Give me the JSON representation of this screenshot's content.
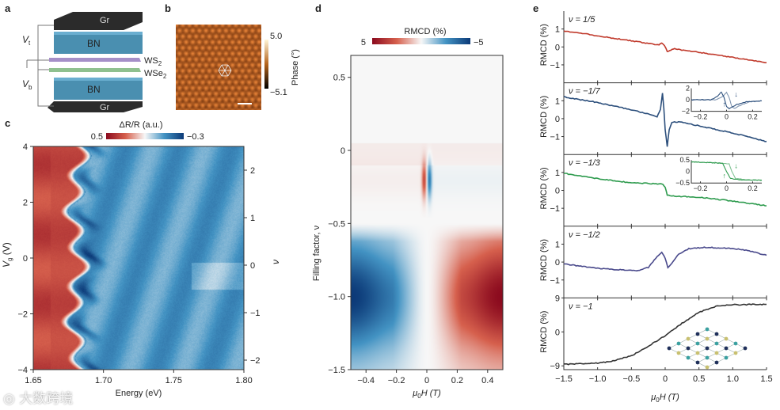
{
  "panel_labels": {
    "a": "a",
    "b": "b",
    "c": "c",
    "d": "d",
    "e": "e"
  },
  "panel_a": {
    "layers": [
      "Gr",
      "BN",
      "WS2",
      "WSe2",
      "BN",
      "Gr"
    ],
    "labels": {
      "gr_top": "Gr",
      "bn_top": "BN",
      "ws2": "WS",
      "ws2_sub": "2",
      "wse2": "WSe",
      "wse2_sub": "2",
      "bn_bottom": "BN",
      "gr_bottom": "Gr",
      "vt": "V",
      "vt_sub": "t",
      "vb": "V",
      "vb_sub": "b"
    },
    "colors": {
      "graphite": "#2b2b2b",
      "bn": "#4a8fb0",
      "ws2": "#a58fc8",
      "wse2": "#8fc08f"
    }
  },
  "panel_b": {
    "colorbar_max": "5.0",
    "colorbar_min": "−5.1",
    "colorbar_label": "Phase (°)",
    "colors": {
      "low": "#000000",
      "mid": "#b5651d",
      "high": "#fff6d8"
    }
  },
  "watermark": "大数跨境",
  "chart_data": [
    {
      "id": "c",
      "type": "heatmap",
      "colorbar_title": "ΔR/R (a.u.)",
      "colorbar_range": [
        0.5,
        -0.3
      ],
      "colorbar_labels": [
        "0.5",
        "−0.3"
      ],
      "xlabel": "Energy (eV)",
      "ylabel": "V",
      "ylabel_sub": "g",
      "ylabel_unit": " (V)",
      "right_label": "ν",
      "xlim": [
        1.65,
        1.8
      ],
      "ylim": [
        -4,
        4
      ],
      "right_lim": [
        -2.2,
        2.5
      ],
      "xticks": [
        {
          "v": 1.65,
          "t": "1.65"
        },
        {
          "v": 1.7,
          "t": "1.70"
        },
        {
          "v": 1.75,
          "t": "1.75"
        },
        {
          "v": 1.8,
          "t": "1.80"
        }
      ],
      "yticks": [
        {
          "v": 4,
          "t": "4"
        },
        {
          "v": 2,
          "t": "2"
        },
        {
          "v": 0,
          "t": "0"
        },
        {
          "v": -2,
          "t": "−2"
        },
        {
          "v": -4,
          "t": "−4"
        }
      ],
      "right_ticks": [
        {
          "v": 2,
          "t": "2"
        },
        {
          "v": 1,
          "t": "1"
        },
        {
          "v": 0,
          "t": "0"
        },
        {
          "v": -1,
          "t": "−1"
        },
        {
          "v": -2,
          "t": "−2"
        }
      ],
      "features": {
        "red_edge_energy": 1.675,
        "background_value": -0.15,
        "red_value": 0.35
      }
    },
    {
      "id": "d",
      "type": "heatmap",
      "colorbar_title": "RMCD (%)",
      "colorbar_range": [
        5,
        -5
      ],
      "colorbar_labels": [
        "5",
        "−5"
      ],
      "xlabel": "μ",
      "xlabel_sub": "0",
      "xlabel_rest": "H (T)",
      "ylabel": "Filling factor, ν",
      "xlim": [
        -0.5,
        0.5
      ],
      "ylim": [
        -1.5,
        0.65
      ],
      "xticks": [
        {
          "v": -0.4,
          "t": "−0.4"
        },
        {
          "v": -0.2,
          "t": "−0.2"
        },
        {
          "v": 0,
          "t": "0"
        },
        {
          "v": 0.2,
          "t": "0.2"
        },
        {
          "v": 0.4,
          "t": "0.4"
        }
      ],
      "yticks": [
        {
          "v": 0.5,
          "t": "0.5"
        },
        {
          "v": 0,
          "t": "0"
        },
        {
          "v": -0.5,
          "t": "−0.5"
        },
        {
          "v": -1.0,
          "t": "−1.0"
        },
        {
          "v": -1.5,
          "t": "−1.5"
        }
      ],
      "features": {
        "blue_center": [
          -0.5,
          -1.0
        ],
        "red_center": [
          0.5,
          -1.0
        ],
        "peak_value": 5
      }
    },
    {
      "id": "e",
      "type": "line",
      "xlabel": "μ",
      "xlabel_sub": "0",
      "xlabel_rest": "H (T)",
      "ylabel": "RMCD (%)",
      "xlim": [
        -1.5,
        1.5
      ],
      "xticks": [
        {
          "v": -1.5,
          "t": "−1.5"
        },
        {
          "v": -1.0,
          "t": "−1.0"
        },
        {
          "v": -0.5,
          "t": "−0.5"
        },
        {
          "v": 0,
          "t": "0"
        },
        {
          "v": 0.5,
          "t": "0.5"
        },
        {
          "v": 1.0,
          "t": "1.0"
        },
        {
          "v": 1.5,
          "t": "1.5"
        }
      ],
      "series": [
        {
          "name": "ν = 1/5",
          "color": "#c0392b",
          "ylim": [
            -2,
            2
          ],
          "yticks": [
            {
              "v": 1,
              "t": "1"
            },
            {
              "v": 0,
              "t": "0"
            },
            {
              "v": -1,
              "t": "−1"
            }
          ],
          "points": [
            [
              -1.5,
              0.9
            ],
            [
              -1.0,
              0.62
            ],
            [
              -0.5,
              0.34
            ],
            [
              -0.2,
              0.17
            ],
            [
              -0.09,
              0.12
            ],
            [
              -0.05,
              0.24
            ],
            [
              -0.01,
              0.1
            ],
            [
              0.03,
              -0.28
            ],
            [
              0.07,
              -0.18
            ],
            [
              0.12,
              -0.1
            ],
            [
              0.2,
              -0.14
            ],
            [
              0.5,
              -0.3
            ],
            [
              1.0,
              -0.58
            ],
            [
              1.5,
              -0.88
            ]
          ]
        },
        {
          "name": "ν = −1/7",
          "color": "#2c4f7c",
          "ylim": [
            -2,
            2
          ],
          "yticks": [
            {
              "v": 1,
              "t": "1"
            },
            {
              "v": 0,
              "t": "0"
            },
            {
              "v": -1,
              "t": "−1"
            }
          ],
          "points": [
            [
              -1.5,
              1.22
            ],
            [
              -1.0,
              0.9
            ],
            [
              -0.5,
              0.5
            ],
            [
              -0.2,
              0.2
            ],
            [
              -0.12,
              0.12
            ],
            [
              -0.07,
              0.5
            ],
            [
              -0.04,
              1.45
            ],
            [
              -0.02,
              0.6
            ],
            [
              0.0,
              -0.6
            ],
            [
              0.03,
              -1.55
            ],
            [
              0.06,
              -0.6
            ],
            [
              0.1,
              -0.2
            ],
            [
              0.2,
              -0.18
            ],
            [
              0.5,
              -0.4
            ],
            [
              1.0,
              -0.8
            ],
            [
              1.5,
              -1.27
            ]
          ],
          "inset": {
            "xlim": [
              -0.27,
              0.27
            ],
            "ylim": [
              -2,
              2
            ],
            "xticks": [
              {
                "v": -0.2,
                "t": "−0.2"
              },
              {
                "v": 0,
                "t": "0"
              },
              {
                "v": 0.2,
                "t": "0.2"
              }
            ],
            "yticks": [
              {
                "v": 2,
                "t": "2"
              },
              {
                "v": 0,
                "t": "0"
              },
              {
                "v": -2,
                "t": "−2"
              }
            ],
            "branches": [
              [
                [
                  -0.27,
                  0
                ],
                [
                  -0.12,
                  0
                ],
                [
                  -0.07,
                  0.6
                ],
                [
                  -0.04,
                  1.4
                ],
                [
                  -0.02,
                  0.5
                ],
                [
                  0.0,
                  -1.2
                ],
                [
                  0.02,
                  -1.5
                ],
                [
                  0.08,
                  -0.8
                ],
                [
                  0.15,
                  -0.35
                ],
                [
                  0.27,
                  -0.2
                ]
              ],
              [
                [
                  -0.27,
                  0
                ],
                [
                  -0.08,
                  0
                ],
                [
                  -0.03,
                  0.6
                ],
                [
                  0.0,
                  1.3
                ],
                [
                  0.02,
                  0.4
                ],
                [
                  0.04,
                  -1.2
                ],
                [
                  0.06,
                  -1.5
                ],
                [
                  0.12,
                  -0.8
                ],
                [
                  0.18,
                  -0.35
                ],
                [
                  0.27,
                  -0.2
                ]
              ]
            ]
          }
        },
        {
          "name": "ν = −1/3",
          "color": "#2e9b4e",
          "ylim": [
            -2,
            2
          ],
          "yticks": [
            {
              "v": 1,
              "t": "1"
            },
            {
              "v": 0,
              "t": "0"
            },
            {
              "v": -1,
              "t": "−1"
            }
          ],
          "points": [
            [
              -1.5,
              0.95
            ],
            [
              -1.0,
              0.65
            ],
            [
              -0.5,
              0.42
            ],
            [
              -0.2,
              0.38
            ],
            [
              -0.05,
              0.36
            ],
            [
              0.0,
              0.2
            ],
            [
              0.03,
              -0.25
            ],
            [
              0.1,
              -0.32
            ],
            [
              0.5,
              -0.38
            ],
            [
              1.0,
              -0.6
            ],
            [
              1.5,
              -0.86
            ]
          ],
          "inset": {
            "xlim": [
              -0.27,
              0.27
            ],
            "ylim": [
              -0.5,
              0.5
            ],
            "xticks": [
              {
                "v": -0.2,
                "t": "−0.2"
              },
              {
                "v": 0,
                "t": "0"
              },
              {
                "v": 0.2,
                "t": "0.2"
              }
            ],
            "yticks": [
              {
                "v": 0.5,
                "t": "0.5"
              },
              {
                "v": 0,
                "t": "0"
              },
              {
                "v": -0.5,
                "t": "−0.5"
              }
            ],
            "branches": [
              [
                [
                  -0.27,
                  0.42
                ],
                [
                  -0.1,
                  0.38
                ],
                [
                  -0.03,
                  0.35
                ],
                [
                  0.0,
                  0.0
                ],
                [
                  0.03,
                  -0.3
                ],
                [
                  0.1,
                  -0.36
                ],
                [
                  0.27,
                  -0.38
                ]
              ],
              [
                [
                  -0.27,
                  0.42
                ],
                [
                  -0.05,
                  0.38
                ],
                [
                  0.02,
                  0.33
                ],
                [
                  0.04,
                  0.0
                ],
                [
                  0.07,
                  -0.3
                ],
                [
                  0.15,
                  -0.36
                ],
                [
                  0.27,
                  -0.38
                ]
              ]
            ]
          }
        },
        {
          "name": "ν = −1/2",
          "color": "#4a4a8c",
          "ylim": [
            -2,
            2
          ],
          "yticks": [
            {
              "v": 1,
              "t": "1"
            },
            {
              "v": 0,
              "t": "0"
            },
            {
              "v": -1,
              "t": "−1"
            }
          ],
          "points": [
            [
              -1.5,
              -0.1
            ],
            [
              -1.0,
              -0.35
            ],
            [
              -0.6,
              -0.45
            ],
            [
              -0.4,
              -0.48
            ],
            [
              -0.25,
              -0.3
            ],
            [
              -0.12,
              0.3
            ],
            [
              -0.05,
              0.55
            ],
            [
              0.0,
              0.2
            ],
            [
              0.04,
              -0.3
            ],
            [
              0.1,
              -0.05
            ],
            [
              0.2,
              0.45
            ],
            [
              0.35,
              0.75
            ],
            [
              0.6,
              0.82
            ],
            [
              0.9,
              0.78
            ],
            [
              1.15,
              0.7
            ],
            [
              1.5,
              0.38
            ]
          ]
        },
        {
          "name": "ν = −1",
          "color": "#333333",
          "ylim": [
            -10,
            9
          ],
          "yticks": [
            {
              "v": 9,
              "t": "9"
            },
            {
              "v": 0,
              "t": "0"
            },
            {
              "v": -9,
              "t": "−9"
            }
          ],
          "points": [
            [
              -1.5,
              -8.6
            ],
            [
              -1.0,
              -8.3
            ],
            [
              -0.75,
              -7.6
            ],
            [
              -0.5,
              -6.3
            ],
            [
              -0.25,
              -3.8
            ],
            [
              0.0,
              -1.0
            ],
            [
              0.25,
              2.3
            ],
            [
              0.5,
              5.2
            ],
            [
              0.75,
              6.8
            ],
            [
              1.0,
              7.2
            ],
            [
              1.5,
              7.3
            ]
          ]
        }
      ]
    }
  ]
}
